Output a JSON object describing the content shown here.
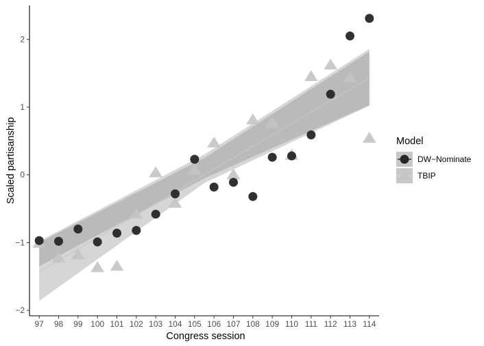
{
  "chart_data": {
    "type": "scatter",
    "xlabel": "Congress session",
    "ylabel": "Scaled partisanship",
    "xlim": [
      96.5,
      114.5
    ],
    "ylim": [
      -2.08,
      2.5
    ],
    "x_ticks": [
      97,
      98,
      99,
      100,
      101,
      102,
      103,
      104,
      105,
      106,
      107,
      108,
      109,
      110,
      111,
      112,
      113,
      114
    ],
    "y_ticks": [
      -2,
      -1,
      0,
      1,
      2
    ],
    "grid": false,
    "legend_title": "Model",
    "legend_position": "right",
    "series": [
      {
        "name": "DW−Nominate",
        "marker": "circle",
        "color": "#262626",
        "points": [
          [
            97,
            -0.97
          ],
          [
            98,
            -0.98
          ],
          [
            99,
            -0.8
          ],
          [
            100,
            -0.99
          ],
          [
            101,
            -0.86
          ],
          [
            102,
            -0.82
          ],
          [
            103,
            -0.58
          ],
          [
            104,
            -0.28
          ],
          [
            105,
            0.23
          ],
          [
            106,
            -0.18
          ],
          [
            107,
            -0.11
          ],
          [
            108,
            -0.32
          ],
          [
            109,
            0.26
          ],
          [
            110,
            0.28
          ],
          [
            111,
            0.59
          ],
          [
            112,
            1.19
          ],
          [
            113,
            2.05
          ],
          [
            114,
            2.31
          ]
        ],
        "fit": {
          "line": [
            [
              97,
              -1.43
            ],
            [
              114,
              1.43
            ]
          ],
          "band_lower": [
            [
              97,
              -1.35
            ],
            [
              105.5,
              -0.05
            ],
            [
              114,
              1.03
            ]
          ],
          "band_upper": [
            [
              97,
              -1.0
            ],
            [
              105.5,
              0.25
            ],
            [
              114,
              1.82
            ]
          ]
        }
      },
      {
        "name": "TBIP",
        "marker": "triangle",
        "color": "#c4c4c4",
        "points": [
          [
            97,
            -1.01
          ],
          [
            98,
            -1.23
          ],
          [
            99,
            -1.18
          ],
          [
            100,
            -1.37
          ],
          [
            101,
            -1.35
          ],
          [
            102,
            -0.58
          ],
          [
            103,
            0.03
          ],
          [
            104,
            -0.42
          ],
          [
            105,
            0.07
          ],
          [
            106,
            0.47
          ],
          [
            107,
            0.0
          ],
          [
            108,
            0.81
          ],
          [
            109,
            0.76
          ],
          [
            110,
            0.29
          ],
          [
            111,
            1.45
          ],
          [
            112,
            1.62
          ],
          [
            113,
            1.43
          ],
          [
            114,
            0.54
          ]
        ],
        "fit": {
          "line": [
            [
              97,
              -1.43
            ],
            [
              114,
              1.43
            ]
          ],
          "band_lower": [
            [
              97,
              -1.86
            ],
            [
              105.5,
              -0.12
            ],
            [
              114,
              1.02
            ]
          ],
          "band_upper": [
            [
              97,
              -0.98
            ],
            [
              105.5,
              0.3
            ],
            [
              114,
              1.86
            ]
          ]
        }
      }
    ]
  }
}
